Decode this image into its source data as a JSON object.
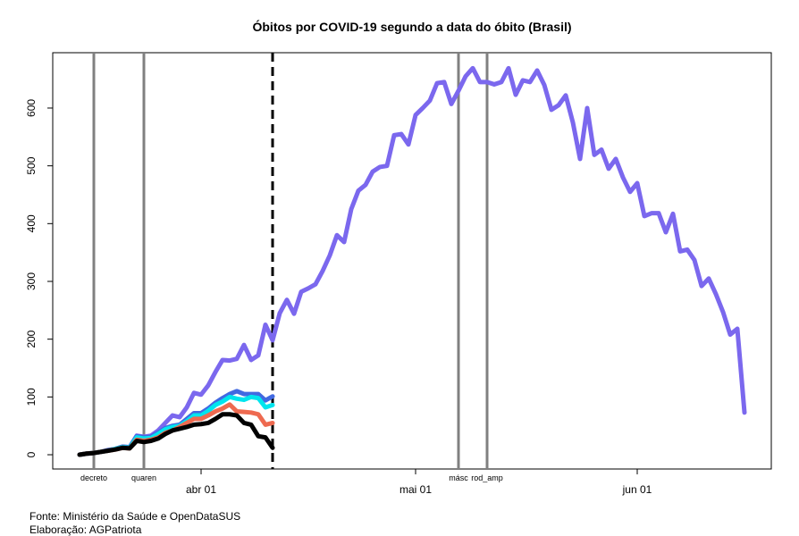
{
  "chart_data": {
    "type": "line",
    "title": "Óbitos por COVID-19 segundo a data do óbito (Brasil)",
    "xlim": [
      71.25,
      171.75
    ],
    "xticks": [
      {
        "value": 92,
        "label": "abr 01"
      },
      {
        "value": 122,
        "label": "mai 01"
      },
      {
        "value": 153,
        "label": "jun 01"
      }
    ],
    "ylim": [
      -24.7,
      695.8
    ],
    "yticks": [
      0,
      100,
      200,
      300,
      400,
      500,
      600
    ],
    "vlines": [
      {
        "x": 77,
        "label": "decreto",
        "color": "#808080"
      },
      {
        "x": 84,
        "label": "quaren",
        "color": "#808080"
      },
      {
        "x": 102,
        "color": "#000000",
        "dashed": true
      },
      {
        "x": 128,
        "label": "másc",
        "color": "#808080"
      },
      {
        "x": 132,
        "label": "rod_amp",
        "color": "#808080"
      }
    ],
    "series": [
      {
        "color": "#7b68ee",
        "x": [
          75,
          76,
          77,
          78,
          79,
          80,
          81,
          82,
          83,
          84,
          85,
          86,
          87,
          88,
          89,
          90,
          91,
          92,
          93,
          94,
          95,
          96,
          97,
          98,
          99,
          100,
          101,
          102,
          103,
          104,
          105,
          106,
          107,
          108,
          109,
          110,
          111,
          112,
          113,
          114,
          115,
          116,
          117,
          118,
          119,
          120,
          121,
          122,
          123,
          124,
          125,
          126,
          127,
          128,
          129,
          130,
          131,
          132,
          133,
          134,
          135,
          136,
          137,
          138,
          139,
          140,
          141,
          142,
          143,
          144,
          145,
          146,
          147,
          148,
          149,
          150,
          151,
          152,
          153,
          154,
          155,
          156,
          157,
          158,
          159,
          160,
          161,
          162,
          163,
          164,
          165,
          166,
          167,
          168
        ],
        "values": [
          0,
          2,
          3,
          5,
          8,
          10,
          14,
          13,
          33,
          31,
          33,
          42,
          55,
          68,
          65,
          82,
          107,
          104,
          120,
          143,
          164,
          163,
          166,
          190,
          164,
          172,
          225,
          198,
          245,
          268,
          244,
          282,
          288,
          295,
          318,
          345,
          380,
          368,
          425,
          457,
          467,
          490,
          498,
          500,
          553,
          555,
          537,
          588,
          600,
          613,
          643,
          645,
          607,
          630,
          655,
          669,
          645,
          645,
          641,
          645,
          669,
          623,
          648,
          645,
          665,
          640,
          597,
          605,
          622,
          575,
          512,
          600,
          519,
          528,
          495,
          512,
          480,
          455,
          470,
          413,
          418,
          418,
          385,
          417,
          352,
          355,
          337,
          292,
          305,
          278,
          247,
          208,
          218,
          73
        ]
      },
      {
        "color": "#4169e1",
        "x": [
          75,
          76,
          77,
          78,
          79,
          80,
          81,
          82,
          83,
          84,
          85,
          86,
          87,
          88,
          89,
          90,
          91,
          92,
          93,
          94,
          95,
          96,
          97,
          98,
          99,
          100,
          101,
          102
        ],
        "values": [
          0,
          2,
          3,
          5,
          8,
          10,
          14,
          13,
          32,
          30,
          31,
          38,
          46,
          50,
          52,
          62,
          72,
          72,
          80,
          90,
          98,
          105,
          110,
          105,
          105,
          105,
          94,
          101
        ]
      },
      {
        "color": "#00e5ee",
        "x": [
          75,
          76,
          77,
          78,
          79,
          80,
          81,
          82,
          83,
          84,
          85,
          86,
          87,
          88,
          89,
          90,
          91,
          92,
          93,
          94,
          95,
          96,
          97,
          98,
          99,
          100,
          101,
          102
        ],
        "values": [
          0,
          2,
          3,
          5,
          7,
          10,
          13,
          12,
          30,
          28,
          29,
          36,
          44,
          48,
          50,
          58,
          68,
          68,
          76,
          86,
          92,
          100,
          97,
          95,
          100,
          98,
          82,
          86
        ]
      },
      {
        "color": "#ee6a50",
        "x": [
          75,
          76,
          77,
          78,
          79,
          80,
          81,
          82,
          83,
          84,
          85,
          86,
          87,
          88,
          89,
          90,
          91,
          92,
          93,
          94,
          95,
          96,
          97,
          98,
          99,
          100,
          101,
          102
        ],
        "values": [
          0,
          2,
          3,
          5,
          7,
          9,
          12,
          11,
          26,
          24,
          26,
          30,
          38,
          42,
          48,
          55,
          62,
          62,
          68,
          75,
          80,
          87,
          75,
          74,
          73,
          70,
          52,
          55
        ]
      },
      {
        "color": "#000000",
        "x": [
          75,
          76,
          77,
          78,
          79,
          80,
          81,
          82,
          83,
          84,
          85,
          86,
          87,
          88,
          89,
          90,
          91,
          92,
          93,
          94,
          95,
          96,
          97,
          98,
          99,
          100,
          101,
          102
        ],
        "values": [
          0,
          2,
          3,
          5,
          7,
          9,
          12,
          11,
          24,
          22,
          24,
          28,
          36,
          42,
          45,
          48,
          52,
          53,
          55,
          62,
          70,
          70,
          68,
          55,
          52,
          32,
          30,
          12
        ]
      }
    ],
    "footer": [
      "Fonte: Ministério da Saúde e OpenDataSUS",
      "Elaboração: AGPatriota"
    ]
  }
}
